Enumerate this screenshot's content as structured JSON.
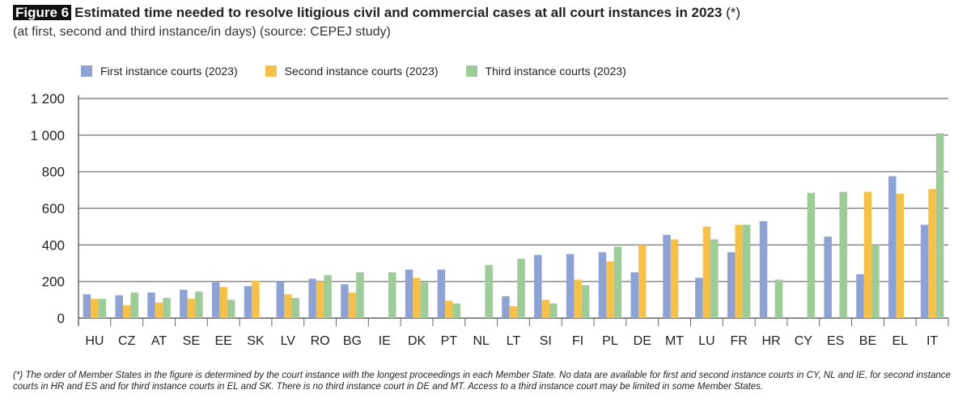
{
  "figure_label": "Figure 6",
  "title": "Estimated time needed to resolve litigious civil and commercial cases at all court instances in 2023",
  "title_suffix": "(*)",
  "subtitle": "(at first, second and third instance/in days) (source: CEPEJ study)",
  "footnote": "(*) The order of Member States in the figure is determined by the court instance with the longest proceedings in each Member State. No data are available for first and second instance courts in CY, NL and IE, for second instance courts in HR and ES and for third instance courts in EL and SK. There is no third instance court in DE and MT. Access to a third instance court may be limited in some Member States.",
  "chart_data": {
    "type": "bar",
    "title": "Estimated time needed to resolve litigious civil and commercial cases at all court instances in 2023",
    "ylim": [
      0,
      1200
    ],
    "yticks": [
      0,
      200,
      400,
      600,
      800,
      1000,
      1200
    ],
    "ytick_labels": [
      "0",
      "200",
      "400",
      "600",
      "800",
      "1 000",
      "1 200"
    ],
    "grid": true,
    "legend": "top",
    "categories": [
      "HU",
      "CZ",
      "AT",
      "SE",
      "EE",
      "SK",
      "LV",
      "RO",
      "BG",
      "IE",
      "DK",
      "PT",
      "NL",
      "LT",
      "SI",
      "FI",
      "PL",
      "DE",
      "MT",
      "LU",
      "FR",
      "HR",
      "CY",
      "ES",
      "BE",
      "EL",
      "IT"
    ],
    "series": [
      {
        "name": "First instance courts (2023)",
        "color": "#8ea3d4",
        "values": [
          130,
          125,
          140,
          155,
          195,
          175,
          200,
          215,
          185,
          null,
          265,
          265,
          null,
          120,
          345,
          350,
          360,
          250,
          455,
          220,
          360,
          530,
          null,
          445,
          240,
          775,
          510
        ]
      },
      {
        "name": "Second instance courts (2023)",
        "color": "#f5c14a",
        "values": [
          105,
          70,
          85,
          105,
          170,
          205,
          130,
          200,
          140,
          null,
          220,
          95,
          null,
          65,
          100,
          210,
          310,
          400,
          430,
          500,
          510,
          null,
          null,
          null,
          690,
          680,
          705
        ]
      },
      {
        "name": "Third instance courts (2023)",
        "color": "#9dcc98",
        "values": [
          105,
          140,
          110,
          145,
          100,
          null,
          110,
          235,
          250,
          250,
          195,
          80,
          290,
          325,
          80,
          180,
          390,
          null,
          null,
          430,
          510,
          210,
          685,
          690,
          400,
          null,
          1010
        ]
      }
    ]
  }
}
